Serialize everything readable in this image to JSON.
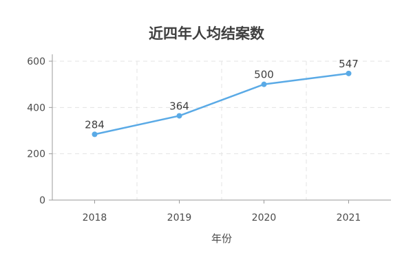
{
  "chart_data": {
    "type": "line",
    "title": "近四年人均结案数",
    "xlabel": "年份",
    "ylabel": "",
    "categories": [
      "2018",
      "2019",
      "2020",
      "2021"
    ],
    "series": [
      {
        "values": [
          284,
          364,
          500,
          547
        ]
      }
    ],
    "ylim": [
      0,
      600
    ],
    "yticks": [
      0,
      200,
      400,
      600
    ],
    "grid": true,
    "data_labels": [
      "284",
      "364",
      "500",
      "547"
    ],
    "line_color": "#5aaae6",
    "grid_color": "#e3e3e3",
    "axis_color": "#999999"
  }
}
